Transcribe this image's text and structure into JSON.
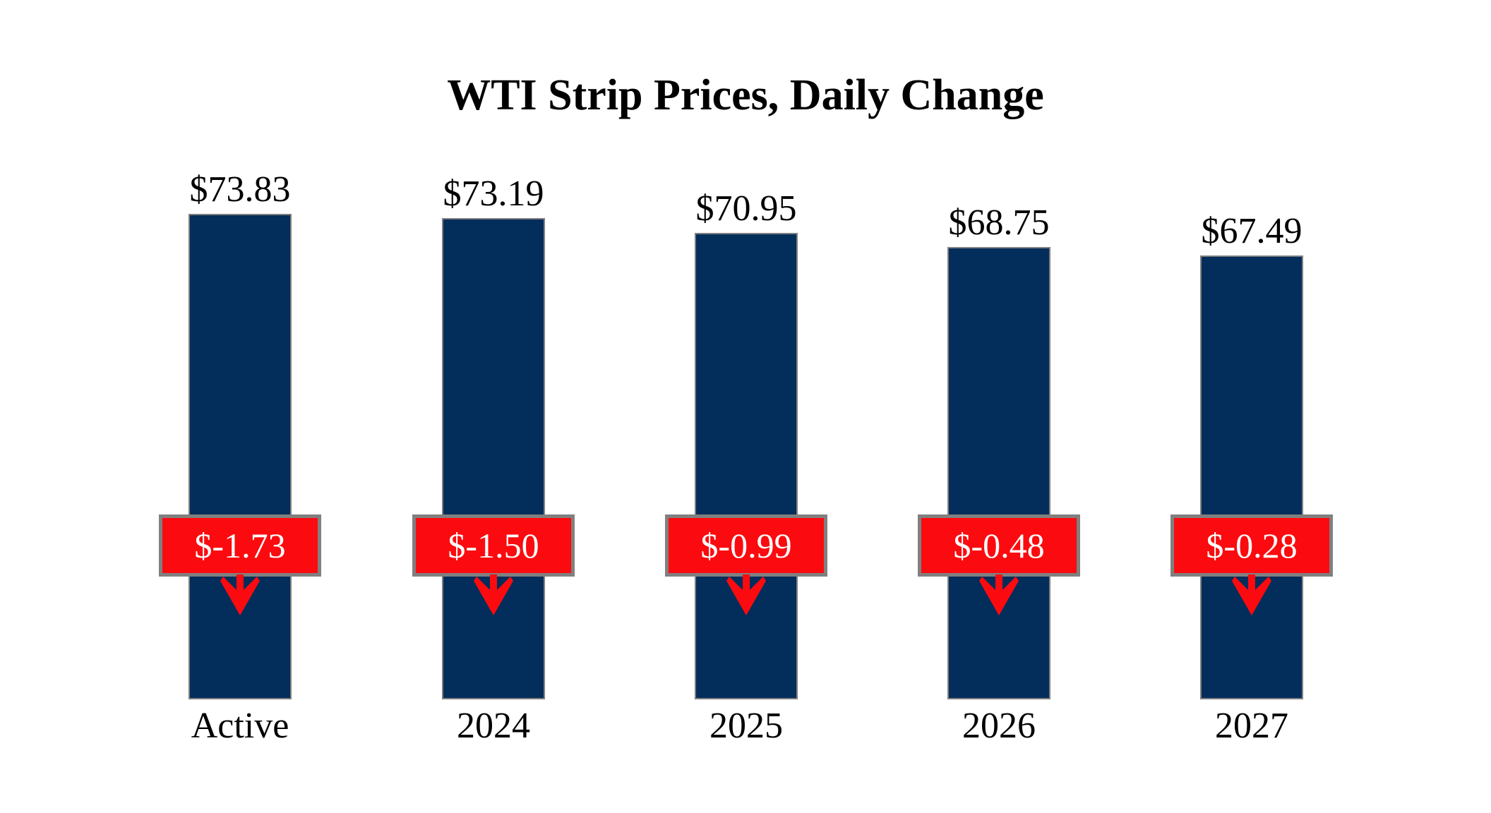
{
  "title": "WTI Strip Prices, Daily Change",
  "chart_data": {
    "type": "bar",
    "title": "WTI Strip Prices, Daily Change",
    "categories": [
      "Active",
      "2024",
      "2025",
      "2026",
      "2027"
    ],
    "series": [
      {
        "name": "Strip Price",
        "values": [
          73.83,
          73.19,
          70.95,
          68.75,
          67.49
        ],
        "labels": [
          "$73.83",
          "$73.19",
          "$70.95",
          "$68.75",
          "$67.49"
        ]
      },
      {
        "name": "Daily Change",
        "values": [
          -1.73,
          -1.5,
          -0.99,
          -0.48,
          -0.28
        ],
        "labels": [
          "$-1.73",
          "$-1.50",
          "$-0.99",
          "$-0.48",
          "$-0.28"
        ]
      }
    ],
    "ylim": [
      0,
      76
    ],
    "grid": false,
    "legend": "none",
    "xlabel": "",
    "ylabel": "",
    "colors": {
      "bar_fill": "#032D5B",
      "bar_border": "#808080",
      "badge_fill": "#FB0B0F",
      "badge_border": "#808080",
      "badge_text": "#FFFFFF",
      "label_text": "#000000",
      "background": "#FFFFFF"
    }
  }
}
